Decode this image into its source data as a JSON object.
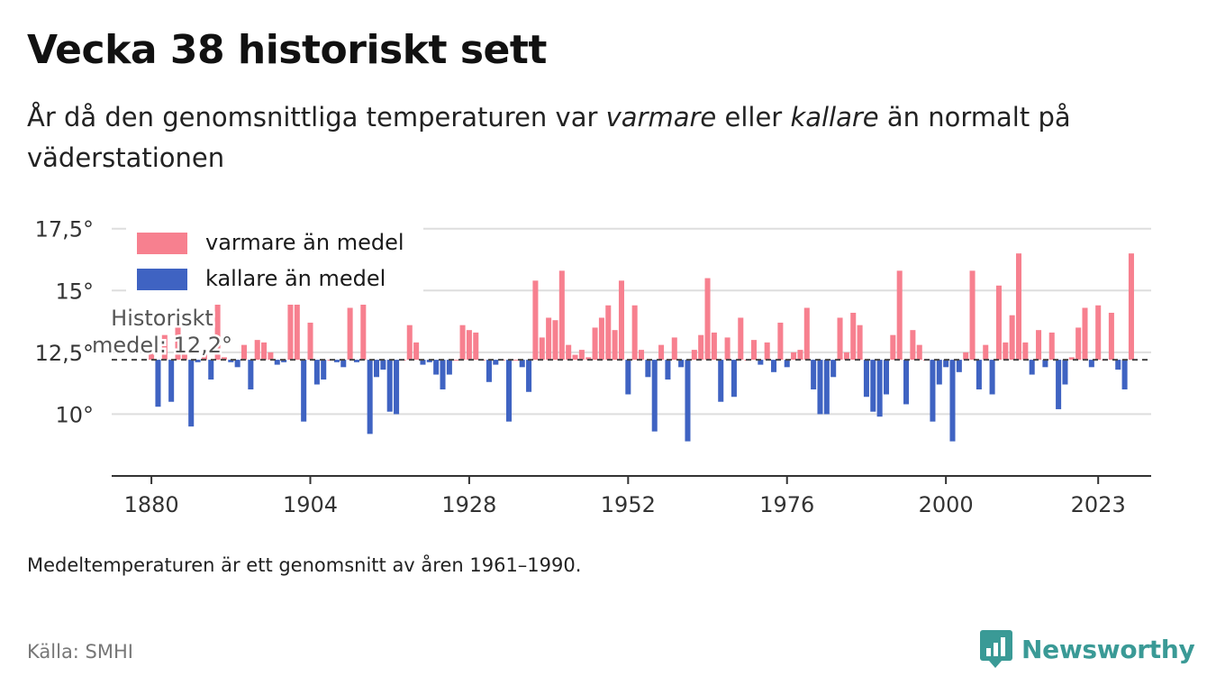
{
  "header": {
    "title": "Vecka 38 historiskt sett",
    "subtitle_parts": [
      "År då den genomsnittliga temperaturen var ",
      "varmare",
      " eller ",
      "kallare",
      " än normalt på väderstationen"
    ]
  },
  "footer": {
    "note": "Medeltemperaturen är ett genomsnitt av åren 1961–1990.",
    "source": "Källa: SMHI",
    "brand": "Newsworthy"
  },
  "colors": {
    "warm": "#f7808f",
    "cold": "#3f63c2",
    "brand": "#3a9a96"
  },
  "chart_data": {
    "type": "bar",
    "baseline": 12.2,
    "baseline_label_line1": "Historiskt",
    "baseline_label_line2": "medel: 12,2°",
    "ylim": [
      7.5,
      18
    ],
    "yticks": [
      10,
      12.5,
      15,
      17.5
    ],
    "ytick_labels": [
      "10°",
      "12,5°",
      "15°",
      "17,5°"
    ],
    "xlim": [
      1874,
      2031
    ],
    "xticks": [
      1880,
      1904,
      1928,
      1952,
      1976,
      2000,
      2023
    ],
    "xtick_labels": [
      "1880",
      "1904",
      "1928",
      "1952",
      "1976",
      "2000",
      "2023"
    ],
    "legend": [
      {
        "name": "varmare än medel",
        "color": "#f7808f"
      },
      {
        "name": "kallare än medel",
        "color": "#3f63c2"
      }
    ],
    "legend_position": "top-left",
    "start_year": 1880,
    "values": [
      12.6,
      10.3,
      13.2,
      10.5,
      13.8,
      12.5,
      9.5,
      12.1,
      12.6,
      11.4,
      15,
      12.3,
      12.1,
      11.9,
      12.8,
      11,
      13,
      12.9,
      12.5,
      12,
      12.1,
      14.9,
      14.9,
      9.7,
      13.7,
      11.2,
      11.4,
      12.2,
      12.1,
      11.9,
      14.3,
      12.1,
      14.8,
      9.2,
      11.5,
      11.8,
      10.1,
      10,
      12.2,
      13.6,
      12.9,
      12,
      12.1,
      11.6,
      11,
      11.6,
      12.2,
      13.6,
      13.4,
      13.3,
      12.2,
      11.3,
      12,
      12.2,
      9.7,
      12.2,
      11.9,
      10.9,
      15.4,
      13.1,
      13.9,
      13.8,
      15.8,
      12.8,
      12.4,
      12.6,
      12.3,
      13.5,
      13.9,
      14.4,
      13.4,
      15.4,
      10.8,
      14.4,
      12.6,
      11.5,
      9.3,
      12.8,
      11.4,
      13.1,
      11.9,
      8.9,
      12.6,
      13.2,
      15.5,
      13.3,
      10.5,
      13.1,
      10.7,
      13.9,
      12.2,
      13,
      12,
      12.9,
      11.7,
      13.7,
      11.9,
      12.5,
      12.6,
      14.3,
      11,
      10,
      10,
      11.5,
      13.9,
      12.5,
      14.1,
      13.6,
      10.7,
      10.1,
      9.9,
      10.8,
      13.2,
      15.8,
      10.4,
      13.4,
      12.8,
      12.2,
      9.7,
      11.2,
      11.9,
      8.9,
      11.7,
      12.5,
      15.8,
      11,
      12.8,
      10.8,
      15.2,
      12.9,
      14,
      16.5,
      12.9,
      11.6,
      13.4,
      11.9,
      13.3,
      10.2,
      11.2,
      12.3,
      13.5,
      14.3,
      11.9,
      14.4,
      12.2,
      14.1,
      11.8,
      11,
      16.5
    ]
  }
}
